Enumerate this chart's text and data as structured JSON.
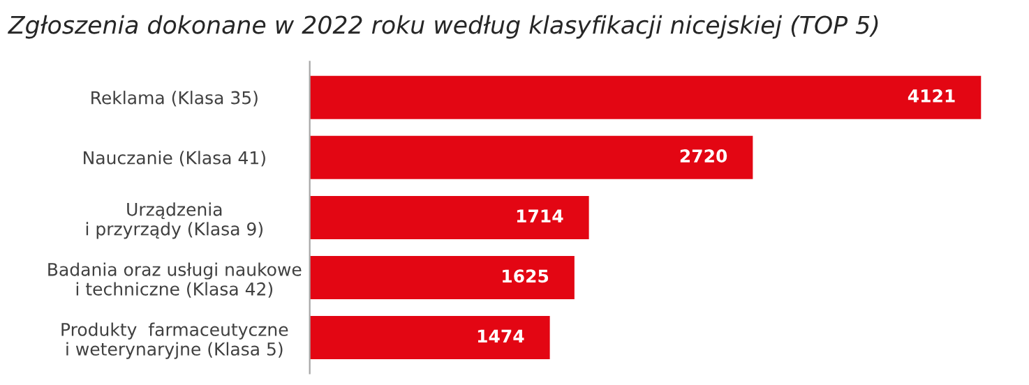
{
  "chart_data": {
    "type": "bar",
    "orientation": "horizontal",
    "title": "Zgłoszenia dokonane w 2022 roku według klasyfikacji nicejskiej (TOP 5)",
    "categories": [
      "Reklama (Klasa 35)",
      "Nauczanie (Klasa 41)",
      "Urządzenia\ni przyrządy (Klasa 9)",
      "Badania oraz usługi naukowe\ni techniczne (Klasa 42)",
      "Produkty  farmaceutyczne\ni weterynaryjne (Klasa 5)"
    ],
    "values": [
      4121,
      2720,
      1714,
      1625,
      1474
    ],
    "color": "#e30613",
    "data_labels": true,
    "grid": false,
    "legend": false
  }
}
